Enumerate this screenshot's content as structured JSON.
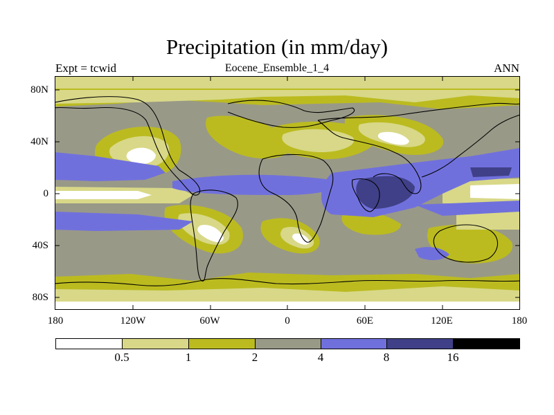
{
  "title": "Precipitation (in mm/day)",
  "subtitle_left": "Expt = tcwid",
  "subtitle_center": "Eocene_Ensemble_1_4",
  "subtitle_right": "ANN",
  "lat_ticks": [
    "80N",
    "40N",
    "0",
    "40S",
    "80S"
  ],
  "lon_ticks": [
    "180",
    "120W",
    "60W",
    "0",
    "60E",
    "120E",
    "180"
  ],
  "colorbar": {
    "labels": [
      "0.5",
      "1",
      "2",
      "4",
      "8",
      "16"
    ],
    "colors": [
      "#ffffff",
      "#d8d888",
      "#bbbb20",
      "#999988",
      "#7070dd",
      "#404088",
      "#000000"
    ]
  },
  "map_colors": {
    "lt05": "#ffffff",
    "r05_1": "#d8d888",
    "r1_2": "#bbbb20",
    "r2_4": "#999988",
    "r4_8": "#7070dd",
    "r8_16": "#404088",
    "coast": "#000000"
  }
}
